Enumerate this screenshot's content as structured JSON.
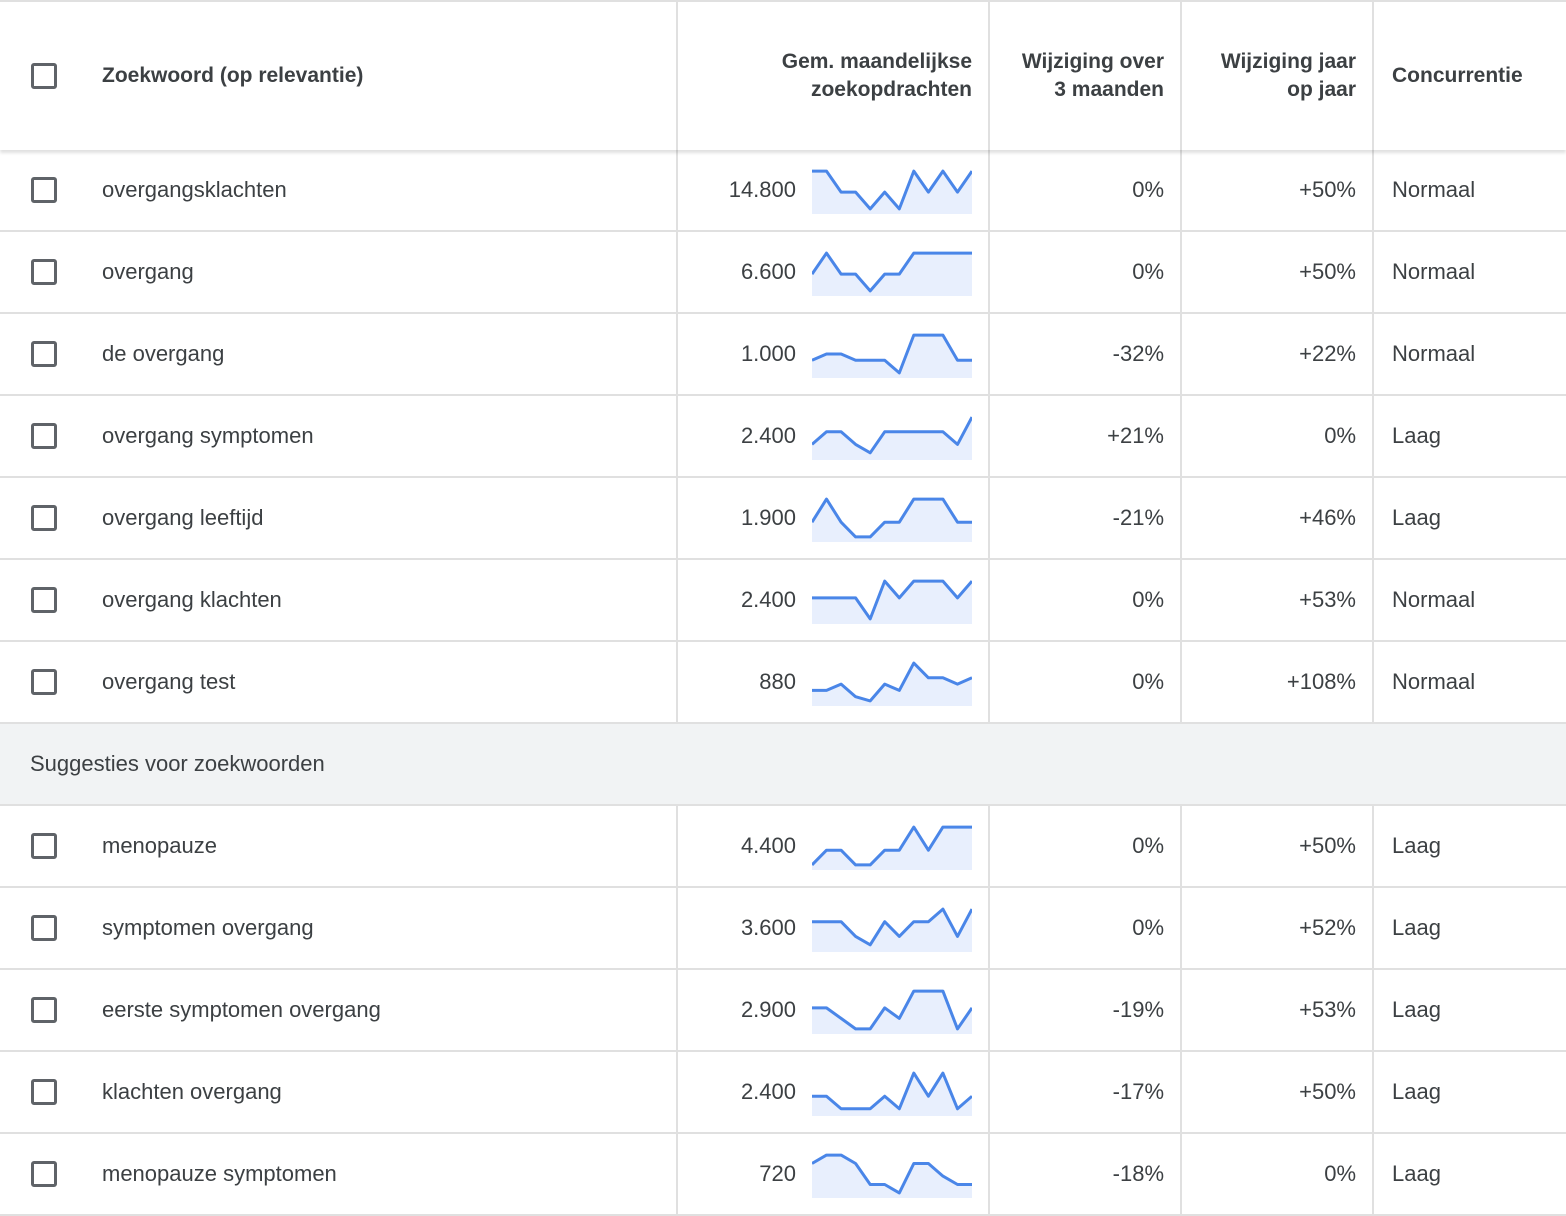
{
  "header": {
    "keyword": "Zoekwoord (op relevantie)",
    "volume_line1": "Gem. maandelijkse",
    "volume_line2": "zoekopdrachten",
    "change3m_line1": "Wijziging over",
    "change3m_line2": "3 maanden",
    "yoy_line1": "Wijziging jaar",
    "yoy_line2": "op jaar",
    "competition": "Concurrentie"
  },
  "colors": {
    "trend_line": "#4a86e8",
    "trend_fill": "#e8effd"
  },
  "keywords": [
    {
      "keyword": "overgangsklachten",
      "volume": "14.800",
      "change_3m": "0%",
      "change_yoy": "+50%",
      "competition": "Normaal",
      "trend": [
        0.95,
        0.95,
        0.45,
        0.45,
        0.05,
        0.45,
        0.05,
        0.95,
        0.45,
        0.95,
        0.45,
        0.95
      ]
    },
    {
      "keyword": "overgang",
      "volume": "6.600",
      "change_3m": "0%",
      "change_yoy": "+50%",
      "competition": "Normaal",
      "trend": [
        0.45,
        0.95,
        0.45,
        0.45,
        0.05,
        0.45,
        0.45,
        0.95,
        0.95,
        0.95,
        0.95,
        0.95
      ]
    },
    {
      "keyword": "de overgang",
      "volume": "1.000",
      "change_3m": "-32%",
      "change_yoy": "+22%",
      "competition": "Normaal",
      "trend": [
        0.35,
        0.5,
        0.5,
        0.35,
        0.35,
        0.35,
        0.05,
        0.95,
        0.95,
        0.95,
        0.35,
        0.35
      ]
    },
    {
      "keyword": "overgang symptomen",
      "volume": "2.400",
      "change_3m": "+21%",
      "change_yoy": "0%",
      "competition": "Laag",
      "trend": [
        0.3,
        0.6,
        0.6,
        0.3,
        0.1,
        0.6,
        0.6,
        0.6,
        0.6,
        0.6,
        0.3,
        0.95
      ]
    },
    {
      "keyword": "overgang leeftijd",
      "volume": "1.900",
      "change_3m": "-21%",
      "change_yoy": "+46%",
      "competition": "Laag",
      "trend": [
        0.4,
        0.95,
        0.4,
        0.05,
        0.05,
        0.4,
        0.4,
        0.95,
        0.95,
        0.95,
        0.4,
        0.4
      ]
    },
    {
      "keyword": "overgang klachten",
      "volume": "2.400",
      "change_3m": "0%",
      "change_yoy": "+53%",
      "competition": "Normaal",
      "trend": [
        0.55,
        0.55,
        0.55,
        0.55,
        0.05,
        0.95,
        0.55,
        0.95,
        0.95,
        0.95,
        0.55,
        0.95
      ]
    },
    {
      "keyword": "overgang test",
      "volume": "880",
      "change_3m": "0%",
      "change_yoy": "+108%",
      "competition": "Normaal",
      "trend": [
        0.3,
        0.3,
        0.45,
        0.15,
        0.05,
        0.45,
        0.3,
        0.95,
        0.6,
        0.6,
        0.45,
        0.6
      ]
    }
  ],
  "section_label": "Suggesties voor zoekwoorden",
  "suggestions": [
    {
      "keyword": "menopauze",
      "volume": "4.400",
      "change_3m": "0%",
      "change_yoy": "+50%",
      "competition": "Laag",
      "trend": [
        0.05,
        0.4,
        0.4,
        0.05,
        0.05,
        0.4,
        0.4,
        0.95,
        0.4,
        0.95,
        0.95,
        0.95
      ]
    },
    {
      "keyword": "symptomen overgang",
      "volume": "3.600",
      "change_3m": "0%",
      "change_yoy": "+52%",
      "competition": "Laag",
      "trend": [
        0.65,
        0.65,
        0.65,
        0.3,
        0.1,
        0.65,
        0.3,
        0.65,
        0.65,
        0.95,
        0.3,
        0.95
      ]
    },
    {
      "keyword": "eerste symptomen overgang",
      "volume": "2.900",
      "change_3m": "-19%",
      "change_yoy": "+53%",
      "competition": "Laag",
      "trend": [
        0.55,
        0.55,
        0.3,
        0.05,
        0.05,
        0.55,
        0.3,
        0.95,
        0.95,
        0.95,
        0.05,
        0.55
      ]
    },
    {
      "keyword": "klachten overgang",
      "volume": "2.400",
      "change_3m": "-17%",
      "change_yoy": "+50%",
      "competition": "Laag",
      "trend": [
        0.4,
        0.4,
        0.1,
        0.1,
        0.1,
        0.4,
        0.1,
        0.95,
        0.4,
        0.95,
        0.1,
        0.4
      ]
    },
    {
      "keyword": "menopauze symptomen",
      "volume": "720",
      "change_3m": "-18%",
      "change_yoy": "0%",
      "competition": "Laag",
      "trend": [
        0.75,
        0.95,
        0.95,
        0.75,
        0.25,
        0.25,
        0.05,
        0.75,
        0.75,
        0.45,
        0.25,
        0.25
      ]
    }
  ]
}
